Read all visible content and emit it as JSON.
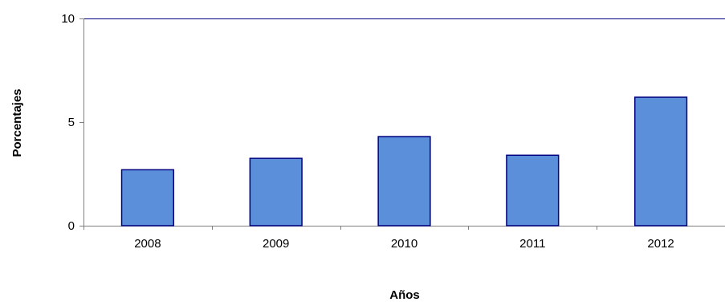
{
  "chart_data": {
    "type": "bar",
    "title": "",
    "xlabel": "Años",
    "ylabel": "Porcentajes",
    "categories": [
      "2008",
      "2009",
      "2010",
      "2011",
      "2012"
    ],
    "values": [
      2.7,
      3.25,
      4.3,
      3.4,
      6.2
    ],
    "ylim": [
      0,
      10
    ],
    "yticks": [
      0,
      5,
      10
    ],
    "grid": false,
    "legend": "none",
    "colors": {
      "bar_fill": "#5b8fd9",
      "bar_stroke": "#000080",
      "axis": "#808080",
      "plot_border": "#000080"
    }
  }
}
